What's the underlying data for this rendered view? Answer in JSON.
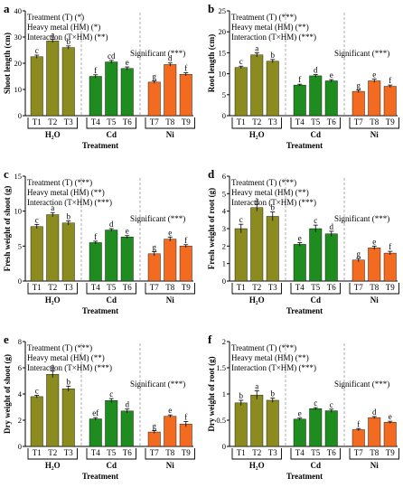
{
  "figure": {
    "colors": {
      "h2o": "#8b8b1f",
      "cd": "#1f8c1f",
      "ni": "#f26b21",
      "axis": "#000000",
      "divider": "#9a9a9a"
    }
  },
  "chart_data": [
    {
      "type": "bar",
      "panel_letter": "a",
      "ylabel": "Shoot length (cm)",
      "xlabel": "Treatment",
      "ylim": [
        0,
        40
      ],
      "yticks": [
        0,
        10,
        20,
        30,
        40
      ],
      "categories": [
        "T1",
        "T2",
        "T3",
        "T4",
        "T5",
        "T6",
        "T7",
        "T8",
        "T9"
      ],
      "groups": [
        {
          "label": "H₂O",
          "key": "h2o"
        },
        {
          "label": "Cd",
          "key": "cd"
        },
        {
          "label": "Ni",
          "key": "ni"
        }
      ],
      "values": [
        22.5,
        28.5,
        26,
        15,
        20.5,
        18,
        12.8,
        19.5,
        15.8
      ],
      "errors": [
        0.6,
        0.6,
        0.6,
        0.6,
        0.6,
        0.6,
        0.5,
        0.6,
        0.6
      ],
      "letters": [
        "c",
        "a",
        "b",
        "f",
        "cd",
        "e",
        "g",
        "d",
        "f"
      ],
      "stats": [
        "Treatment (T) (*)",
        "Heavy metal (HM) (*)",
        "Interaction (T×HM) (**)"
      ],
      "significance": "Significant (***)"
    },
    {
      "type": "bar",
      "panel_letter": "b",
      "ylabel": "Root length (cm)",
      "xlabel": "Treatment",
      "ylim": [
        0,
        25
      ],
      "yticks": [
        0,
        5,
        10,
        15,
        20,
        25
      ],
      "categories": [
        "T1",
        "T2",
        "T3",
        "T4",
        "T5",
        "T6",
        "T7",
        "T8",
        "T9"
      ],
      "groups": [
        {
          "label": "H₂O",
          "key": "h2o"
        },
        {
          "label": "Cd",
          "key": "cd"
        },
        {
          "label": "Ni",
          "key": "ni"
        }
      ],
      "values": [
        11.5,
        14.5,
        13,
        7.3,
        9.5,
        8.3,
        5.8,
        8.3,
        7
      ],
      "errors": [
        0.3,
        0.5,
        0.4,
        0.2,
        0.3,
        0.3,
        0.3,
        0.4,
        0.3
      ],
      "letters": [
        "c",
        "a",
        "b",
        "f",
        "d",
        "e",
        "g",
        "e",
        "f"
      ],
      "stats": [
        "Treatment (T) (***)",
        "Heavy metal (HM) (**)",
        "Interaction (T×HM) (***)"
      ],
      "significance": "Significant (***)"
    },
    {
      "type": "bar",
      "panel_letter": "c",
      "ylabel": "Fresh weight of shoot (g)",
      "xlabel": "Treatment",
      "ylim": [
        0,
        15
      ],
      "yticks": [
        0,
        5,
        10,
        15
      ],
      "categories": [
        "T1",
        "T2",
        "T3",
        "T4",
        "T5",
        "T6",
        "T7",
        "T8",
        "T9"
      ],
      "groups": [
        {
          "label": "H₂O",
          "key": "h2o"
        },
        {
          "label": "Cd",
          "key": "cd"
        },
        {
          "label": "Ni",
          "key": "ni"
        }
      ],
      "values": [
        7.8,
        9.5,
        8.3,
        5.5,
        7.3,
        6.3,
        3.9,
        6,
        5
      ],
      "errors": [
        0.3,
        0.3,
        0.3,
        0.2,
        0.2,
        0.2,
        0.3,
        0.3,
        0.2
      ],
      "letters": [
        "c",
        "a",
        "b",
        "f",
        "d",
        "e",
        "g",
        "e",
        "f"
      ],
      "stats": [
        "Treatment (T) (***)",
        "Heavy metal (HM) (**)",
        "Interaction (T×HM) (***)"
      ],
      "significance": "Significant (***)"
    },
    {
      "type": "bar",
      "panel_letter": "d",
      "ylabel": "Fresh weight of root (g)",
      "xlabel": "Treatment",
      "ylim": [
        0,
        6
      ],
      "yticks": [
        0,
        1,
        2,
        3,
        4,
        5,
        6
      ],
      "categories": [
        "T1",
        "T2",
        "T3",
        "T4",
        "T5",
        "T6",
        "T7",
        "T8",
        "T9"
      ],
      "groups": [
        {
          "label": "H₂O",
          "key": "h2o"
        },
        {
          "label": "Cd",
          "key": "cd"
        },
        {
          "label": "Ni",
          "key": "ni"
        }
      ],
      "values": [
        3,
        4.2,
        3.7,
        2.1,
        3,
        2.7,
        1.2,
        1.9,
        1.6
      ],
      "errors": [
        0.25,
        0.2,
        0.25,
        0.1,
        0.2,
        0.15,
        0.1,
        0.1,
        0.1
      ],
      "letters": [
        "c",
        "a",
        "b",
        "e",
        "c",
        "d",
        "g",
        "e",
        "f"
      ],
      "stats": [
        "Treatment (T) (***)",
        "Heavy metal (HM) (**)",
        "Interaction (T×HM) (***)"
      ],
      "significance": "Significant (***)"
    },
    {
      "type": "bar",
      "panel_letter": "e",
      "ylabel": "Dry weight of shoot (g)",
      "xlabel": "Treatment",
      "ylim": [
        0,
        8
      ],
      "yticks": [
        0,
        2,
        4,
        6,
        8
      ],
      "categories": [
        "T1",
        "T2",
        "T3",
        "T4",
        "T5",
        "T6",
        "T7",
        "T8",
        "T9"
      ],
      "groups": [
        {
          "label": "H₂O",
          "key": "h2o"
        },
        {
          "label": "Cd",
          "key": "cd"
        },
        {
          "label": "Ni",
          "key": "ni"
        }
      ],
      "values": [
        3.8,
        5.5,
        4.4,
        2.1,
        3.5,
        2.7,
        1.1,
        2.3,
        1.7
      ],
      "errors": [
        0.1,
        0.25,
        0.2,
        0.1,
        0.15,
        0.15,
        0.1,
        0.1,
        0.2
      ],
      "letters": [
        "c",
        "a",
        "b",
        "ef",
        "c",
        "d",
        "g",
        "e",
        "f"
      ],
      "stats": [
        "Treatment (T) (***)",
        "Heavy metal (HM) (**)",
        "Interaction (T×HM) (***)"
      ],
      "significance": "Significant (***)"
    },
    {
      "type": "bar",
      "panel_letter": "f",
      "ylabel": "Dry weight of root (g)",
      "xlabel": "Treatment",
      "ylim": [
        0,
        2.0
      ],
      "yticks": [
        0,
        0.5,
        1.0,
        1.5,
        2.0
      ],
      "categories": [
        "T1",
        "T2",
        "T3",
        "T4",
        "T5",
        "T6",
        "T7",
        "T8",
        "T9"
      ],
      "groups": [
        {
          "label": "H₂O",
          "key": "h2o"
        },
        {
          "label": "Cd",
          "key": "cd"
        },
        {
          "label": "Ni",
          "key": "ni"
        }
      ],
      "values": [
        0.83,
        0.98,
        0.88,
        0.52,
        0.72,
        0.68,
        0.32,
        0.55,
        0.46
      ],
      "errors": [
        0.05,
        0.08,
        0.04,
        0.02,
        0.02,
        0.03,
        0.02,
        0.02,
        0.02
      ],
      "letters": [
        "b",
        "a",
        "b",
        "e",
        "c",
        "c",
        "f",
        "d",
        "e"
      ],
      "stats": [
        "Treatment (T) (***)",
        "Heavy metal (HM) (**)",
        "Interaction (T×HM) (***)"
      ],
      "significance": "Significant (***)"
    }
  ]
}
